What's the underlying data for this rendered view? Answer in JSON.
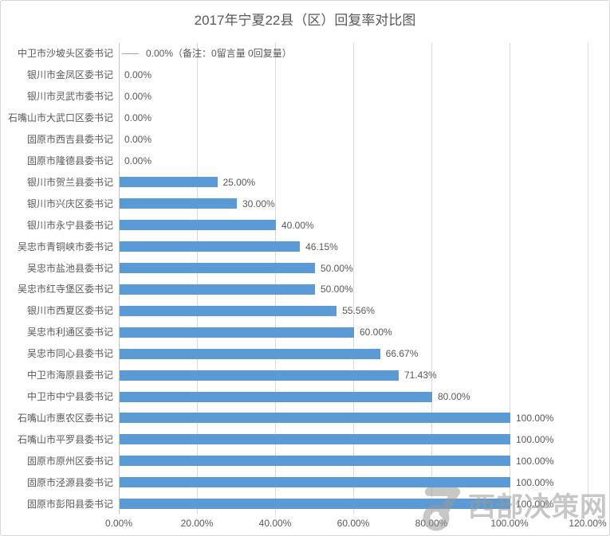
{
  "chart_data": {
    "type": "bar",
    "orientation": "horizontal",
    "title": "2017年宁夏22县（区）回复率对比图",
    "categories": [
      "中卫市沙坡头区委书记",
      "银川市金凤区委书记",
      "银川市灵武市委书记",
      "石嘴山市大武口区委书记",
      "固原市西吉县委书记",
      "固原市隆德县委书记",
      "银川市贺兰县委书记",
      "银川市兴庆区委书记",
      "银川市永宁县委书记",
      "吴忠市青铜峡市委书记",
      "吴忠市盐池县委书记",
      "吴忠市红寺堡区委书记",
      "银川市西夏区委书记",
      "吴忠市利通区委书记",
      "吴忠市同心县委书记",
      "中卫市海原县委书记",
      "中卫市中宁县委书记",
      "石嘴山市惠农区委书记",
      "石嘴山市平罗县委书记",
      "固原市原州区委书记",
      "固原市泾源县委书记",
      "固原市彭阳县委书记"
    ],
    "values": [
      0,
      0,
      0,
      0,
      0,
      0,
      25,
      30,
      40,
      46.15,
      50,
      50,
      55.56,
      60,
      66.67,
      71.43,
      80,
      100,
      100,
      100,
      100,
      100
    ],
    "data_labels": [
      "0.00%（备注：0留言量 0回复量）",
      "0.00%",
      "0.00%",
      "0.00%",
      "0.00%",
      "0.00%",
      "25.00%",
      "30.00%",
      "40.00%",
      "46.15%",
      "50.00%",
      "50.00%",
      "55.56%",
      "60.00%",
      "66.67%",
      "71.43%",
      "80.00%",
      "100.00%",
      "100.00%",
      "100.00%",
      "100.00%",
      "100.00%"
    ],
    "xlabel": "",
    "ylabel": "",
    "xlim": [
      0,
      120
    ],
    "x_ticks": [
      "0.00%",
      "20.00%",
      "40.00%",
      "60.00%",
      "80.00%",
      "100.00%",
      "120.00%"
    ],
    "grid": true,
    "legend": false,
    "bar_color": "#5b9bd5",
    "gridline_color": "#d9d9d9",
    "text_color": "#595959"
  },
  "watermark": {
    "text": "西部决策网"
  }
}
